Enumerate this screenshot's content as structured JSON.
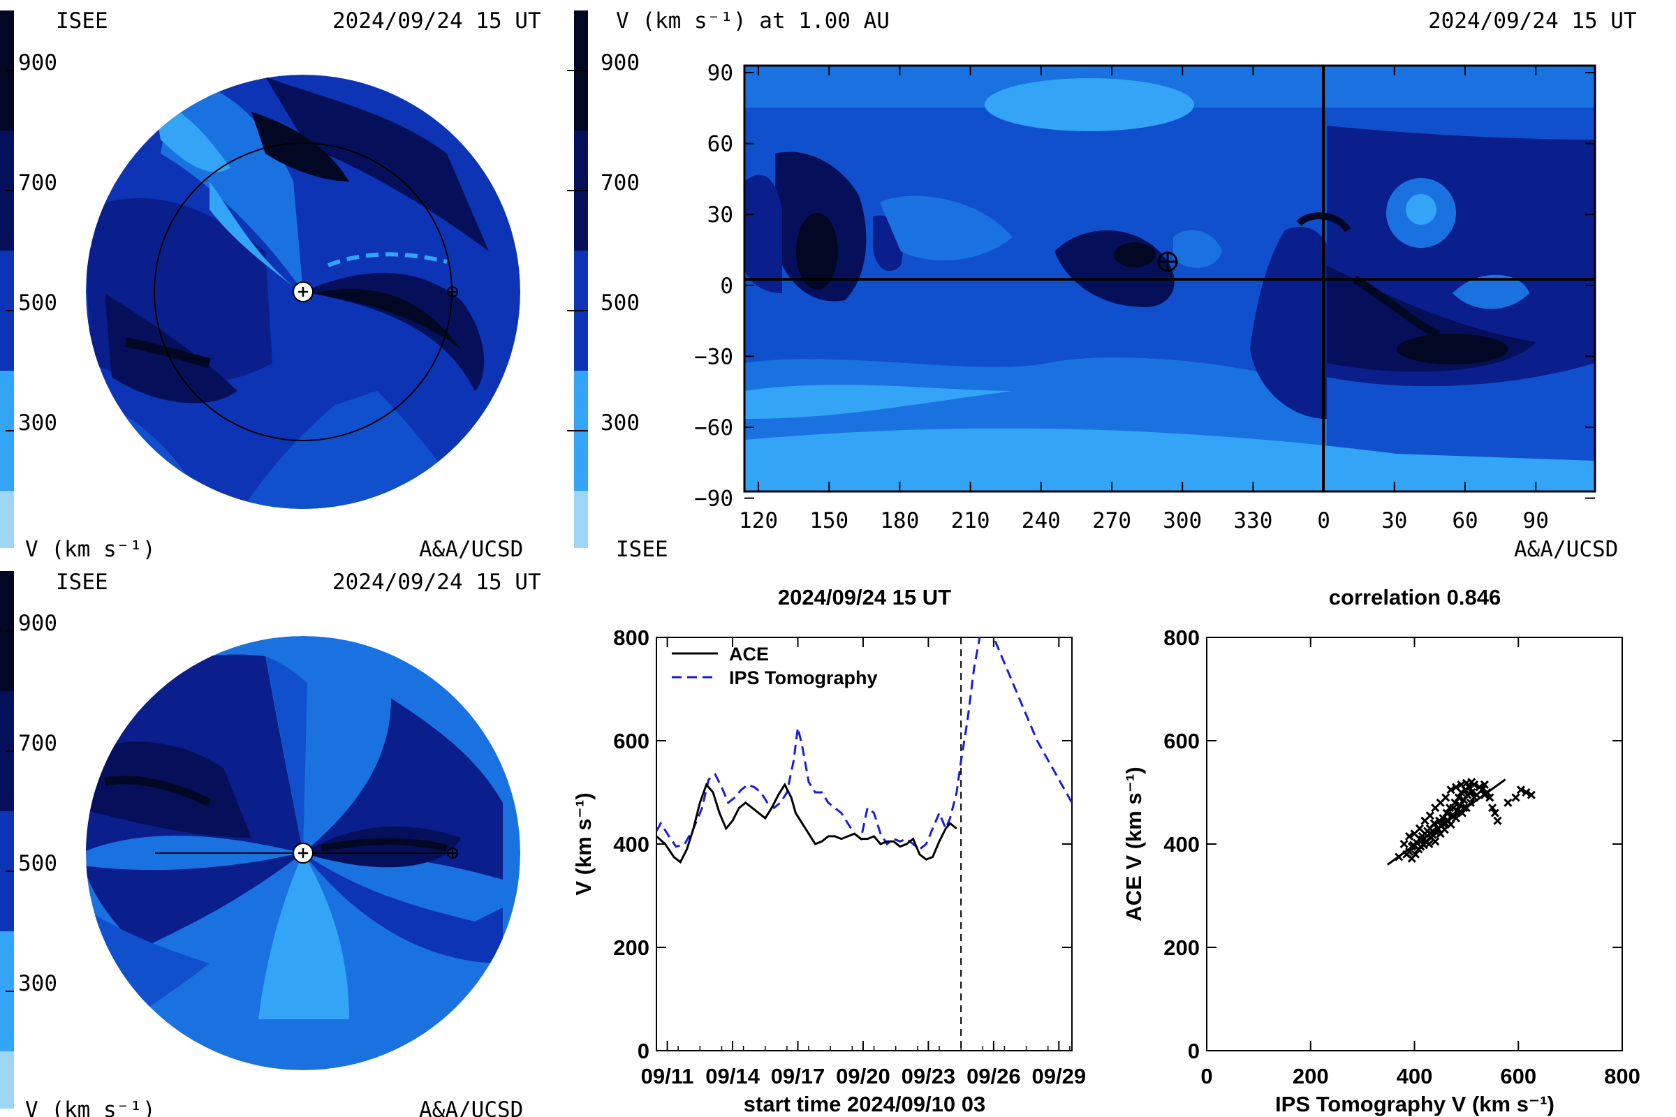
{
  "colors": {
    "v900": "#020824",
    "v800": "#06105a",
    "v700": "#0a1e8c",
    "v600": "#0d34b4",
    "v500": "#1150cc",
    "v400": "#1a72e0",
    "v300": "#33a4f6",
    "v200": "#9fd6f8",
    "ips_line": "#1a1adc",
    "ace_line": "#000000"
  },
  "colorbar": {
    "levels": [
      "900",
      "700",
      "500",
      "300"
    ]
  },
  "panel_top_left": {
    "label_left": "ISEE",
    "timestamp": "2024/09/24 15 UT",
    "unit": "V (km s⁻¹)",
    "credit": "A&A/UCSD"
  },
  "panel_top_right": {
    "title": "V (km s⁻¹) at 1.00 AU",
    "timestamp": "2024/09/24 15 UT",
    "label_left": "ISEE",
    "credit": "A&A/UCSD",
    "x_ticks": [
      "120",
      "150",
      "180",
      "210",
      "240",
      "270",
      "300",
      "330",
      "0",
      "30",
      "60",
      "90"
    ],
    "y_ticks": [
      "90",
      "60",
      "30",
      "0",
      "−30",
      "−60",
      "−90"
    ]
  },
  "panel_bottom_left": {
    "label_left": "ISEE",
    "timestamp": "2024/09/24 15 UT",
    "unit": "V (km s⁻¹)",
    "credit": "A&A/UCSD"
  },
  "chart_data": [
    {
      "type": "line",
      "title": "2024/09/24 15 UT",
      "xlabel": "start time 2024/09/10 03",
      "ylabel": "V (km s⁻¹)",
      "xlim": [
        0.5,
        19.6
      ],
      "ylim": [
        0,
        800
      ],
      "x_ticks": [
        1,
        4,
        7,
        10,
        13,
        16,
        19
      ],
      "x_tick_labels": [
        "09/11",
        "09/14",
        "09/17",
        "09/20",
        "09/23",
        "09/26",
        "09/29"
      ],
      "y_ticks": [
        0,
        200,
        400,
        600,
        800
      ],
      "now_marker_x": 14.5,
      "series": [
        {
          "name": "ACE",
          "style": "solid",
          "x": [
            0.5,
            0.9,
            1.3,
            1.6,
            1.9,
            2.2,
            2.5,
            2.8,
            3.1,
            3.4,
            3.7,
            4.0,
            4.3,
            4.6,
            4.9,
            5.2,
            5.5,
            5.8,
            6.1,
            6.4,
            6.7,
            6.9,
            7.2,
            7.5,
            7.8,
            8.1,
            8.4,
            8.7,
            9.0,
            9.3,
            9.6,
            9.9,
            10.2,
            10.5,
            10.8,
            11.1,
            11.4,
            11.7,
            12.0,
            12.3,
            12.6,
            12.9,
            13.2,
            13.5,
            13.8,
            14.0,
            14.3
          ],
          "y": [
            415,
            400,
            375,
            365,
            390,
            430,
            480,
            515,
            500,
            460,
            430,
            445,
            470,
            480,
            470,
            460,
            450,
            470,
            495,
            515,
            490,
            460,
            440,
            420,
            400,
            405,
            415,
            415,
            410,
            415,
            420,
            410,
            410,
            415,
            400,
            405,
            405,
            395,
            400,
            410,
            380,
            370,
            375,
            405,
            430,
            440,
            430
          ]
        },
        {
          "name": "IPS Tomography",
          "style": "dashed",
          "x": [
            0.5,
            0.7,
            1.0,
            1.4,
            1.8,
            2.2,
            2.6,
            2.9,
            3.2,
            3.5,
            3.8,
            4.1,
            4.4,
            4.7,
            5.0,
            5.3,
            5.6,
            5.9,
            6.2,
            6.5,
            6.8,
            7.0,
            7.2,
            7.5,
            7.8,
            8.1,
            8.4,
            8.7,
            9.0,
            9.3,
            9.6,
            9.9,
            10.2,
            10.5,
            10.8,
            11.1,
            11.4,
            11.7,
            12.0,
            12.3,
            12.6,
            12.9,
            13.2,
            13.5,
            13.8,
            14.0,
            14.3,
            14.5,
            14.8,
            15.1,
            15.4,
            15.7,
            16.0,
            16.4,
            16.8,
            17.2,
            17.6,
            18.0,
            18.4,
            18.8,
            19.2,
            19.6
          ],
          "y": [
            425,
            440,
            420,
            395,
            400,
            430,
            470,
            525,
            535,
            510,
            480,
            490,
            505,
            515,
            510,
            500,
            480,
            470,
            480,
            500,
            560,
            625,
            590,
            520,
            500,
            500,
            480,
            470,
            460,
            440,
            420,
            410,
            470,
            460,
            420,
            400,
            410,
            405,
            410,
            400,
            390,
            400,
            430,
            460,
            430,
            450,
            500,
            560,
            640,
            740,
            810,
            810,
            800,
            760,
            720,
            680,
            640,
            600,
            570,
            540,
            510,
            480
          ]
        }
      ]
    },
    {
      "type": "scatter",
      "title": "correlation 0.846",
      "xlabel": "IPS Tomography V (km s⁻¹)",
      "ylabel": "ACE V (km s⁻¹)",
      "xlim": [
        0,
        800
      ],
      "ylim": [
        0,
        800
      ],
      "x_ticks": [
        0,
        200,
        400,
        600,
        800
      ],
      "y_ticks": [
        0,
        200,
        400,
        600,
        800
      ],
      "fit_line": [
        [
          348,
          360
        ],
        [
          575,
          525
        ]
      ],
      "points": [
        [
          370,
          375
        ],
        [
          385,
          380
        ],
        [
          390,
          385
        ],
        [
          395,
          372
        ],
        [
          398,
          398
        ],
        [
          402,
          380
        ],
        [
          405,
          402
        ],
        [
          408,
          390
        ],
        [
          410,
          410
        ],
        [
          412,
          395
        ],
        [
          415,
          415
        ],
        [
          418,
          398
        ],
        [
          420,
          420
        ],
        [
          422,
          405
        ],
        [
          425,
          425
        ],
        [
          428,
          400
        ],
        [
          430,
          430
        ],
        [
          432,
          412
        ],
        [
          435,
          418
        ],
        [
          438,
          440
        ],
        [
          440,
          405
        ],
        [
          442,
          422
        ],
        [
          445,
          430
        ],
        [
          448,
          445
        ],
        [
          450,
          420
        ],
        [
          452,
          435
        ],
        [
          455,
          450
        ],
        [
          458,
          428
        ],
        [
          460,
          440
        ],
        [
          462,
          460
        ],
        [
          465,
          445
        ],
        [
          468,
          470
        ],
        [
          470,
          438
        ],
        [
          472,
          455
        ],
        [
          475,
          470
        ],
        [
          478,
          480
        ],
        [
          480,
          450
        ],
        [
          482,
          465
        ],
        [
          485,
          490
        ],
        [
          488,
          475
        ],
        [
          490,
          500
        ],
        [
          492,
          460
        ],
        [
          495,
          485
        ],
        [
          498,
          505
        ],
        [
          500,
          470
        ],
        [
          502,
          495
        ],
        [
          505,
          510
        ],
        [
          508,
          480
        ],
        [
          510,
          500
        ],
        [
          515,
          515
        ],
        [
          520,
          495
        ],
        [
          525,
          510
        ],
        [
          530,
          505
        ],
        [
          535,
          515
        ],
        [
          540,
          500
        ],
        [
          545,
          490
        ],
        [
          550,
          470
        ],
        [
          555,
          460
        ],
        [
          560,
          445
        ],
        [
          580,
          480
        ],
        [
          595,
          490
        ],
        [
          605,
          505
        ],
        [
          615,
          500
        ],
        [
          625,
          495
        ],
        [
          380,
          400
        ],
        [
          390,
          415
        ],
        [
          400,
          420
        ],
        [
          410,
          430
        ],
        [
          420,
          445
        ],
        [
          430,
          455
        ],
        [
          440,
          470
        ],
        [
          450,
          480
        ],
        [
          460,
          490
        ],
        [
          470,
          505
        ],
        [
          480,
          510
        ],
        [
          490,
          515
        ],
        [
          500,
          518
        ],
        [
          510,
          520
        ],
        [
          395,
          395
        ],
        [
          415,
          408
        ],
        [
          435,
          425
        ],
        [
          455,
          440
        ],
        [
          475,
          455
        ],
        [
          495,
          470
        ],
        [
          515,
          490
        ],
        [
          535,
          495
        ]
      ]
    }
  ]
}
